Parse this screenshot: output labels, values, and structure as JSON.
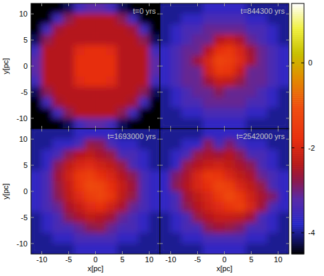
{
  "chart_data": {
    "type": "heatmap",
    "x_label": "x[pc]",
    "y_label": "y[pc]",
    "xlim": [
      -12,
      12
    ],
    "ylim": [
      -12,
      12
    ],
    "xticks": [
      -10,
      -5,
      0,
      5,
      10
    ],
    "yticks": [
      -10,
      -5,
      0,
      5,
      10
    ],
    "x": [
      -11,
      -9,
      -7,
      -5,
      -3,
      -1,
      1,
      3,
      5,
      7,
      9,
      11
    ],
    "y": [
      11,
      9,
      7,
      5,
      3,
      1,
      -1,
      -3,
      -5,
      -7,
      -9,
      -11
    ],
    "color_range": [
      -4.5,
      1.4
    ],
    "color_ticks": [
      -4,
      -2,
      0
    ],
    "panels": [
      {
        "title": "t=0 yrs",
        "cells": [
          [
            -4.5,
            -4.5,
            -4.5,
            -4.2,
            -3.5,
            -3.2,
            -3.2,
            -3.5,
            -4.2,
            -4.5,
            -4.5,
            -4.5
          ],
          [
            -4.5,
            -4.5,
            -3.5,
            -2.8,
            -2.4,
            -2.4,
            -2.4,
            -2.4,
            -2.8,
            -3.5,
            -4.5,
            -4.5
          ],
          [
            -4.5,
            -3.5,
            -2.6,
            -2.4,
            -2.4,
            -2.4,
            -2.4,
            -2.4,
            -2.4,
            -2.6,
            -3.5,
            -4.5
          ],
          [
            -4.2,
            -2.8,
            -2.4,
            -2.4,
            -2.4,
            -2.4,
            -2.4,
            -2.4,
            -2.4,
            -2.4,
            -2.8,
            -4.2
          ],
          [
            -3.5,
            -2.4,
            -2.4,
            -2.4,
            -1.9,
            -1.8,
            -1.8,
            -1.9,
            -2.4,
            -2.4,
            -2.4,
            -3.5
          ],
          [
            -3.2,
            -2.4,
            -2.4,
            -2.4,
            -1.8,
            -1.8,
            -1.8,
            -1.8,
            -2.4,
            -2.4,
            -2.4,
            -3.2
          ],
          [
            -3.2,
            -2.4,
            -2.4,
            -2.4,
            -1.8,
            -1.8,
            -1.8,
            -1.8,
            -2.4,
            -2.4,
            -2.4,
            -3.2
          ],
          [
            -3.5,
            -2.4,
            -2.4,
            -2.4,
            -1.9,
            -1.8,
            -1.8,
            -1.9,
            -2.4,
            -2.4,
            -2.4,
            -3.5
          ],
          [
            -4.2,
            -2.8,
            -2.4,
            -2.4,
            -2.4,
            -2.4,
            -2.4,
            -2.4,
            -2.4,
            -2.4,
            -2.8,
            -4.2
          ],
          [
            -4.5,
            -3.5,
            -2.6,
            -2.4,
            -2.4,
            -2.4,
            -2.4,
            -2.4,
            -2.4,
            -2.6,
            -3.5,
            -4.5
          ],
          [
            -4.5,
            -4.5,
            -3.5,
            -2.8,
            -2.4,
            -2.4,
            -2.4,
            -2.4,
            -2.8,
            -3.5,
            -4.5,
            -4.5
          ],
          [
            -4.5,
            -4.5,
            -4.5,
            -4.2,
            -3.5,
            -3.2,
            -3.2,
            -3.5,
            -4.2,
            -4.5,
            -4.5,
            -4.5
          ]
        ]
      },
      {
        "title": "t=844300 yrs",
        "cells": [
          [
            -4.0,
            -4.0,
            -4.0,
            -4.0,
            -3.7,
            -3.7,
            -3.7,
            -3.7,
            -4.0,
            -4.0,
            -4.0,
            -4.0
          ],
          [
            -4.0,
            -4.0,
            -3.7,
            -3.7,
            -3.4,
            -3.4,
            -3.4,
            -3.4,
            -3.7,
            -3.7,
            -4.0,
            -4.0
          ],
          [
            -4.0,
            -3.7,
            -3.4,
            -3.4,
            -3.1,
            -3.1,
            -3.1,
            -3.1,
            -3.4,
            -3.4,
            -3.7,
            -4.0
          ],
          [
            -4.0,
            -3.7,
            -3.4,
            -3.1,
            -3.1,
            -2.4,
            -2.2,
            -2.5,
            -3.1,
            -3.4,
            -3.7,
            -4.0
          ],
          [
            -3.7,
            -3.4,
            -3.1,
            -3.1,
            -2.4,
            -1.8,
            -1.6,
            -2.0,
            -2.6,
            -3.1,
            -3.4,
            -3.7
          ],
          [
            -3.7,
            -3.4,
            -3.1,
            -2.6,
            -2.0,
            -1.3,
            -1.5,
            -1.9,
            -2.5,
            -3.1,
            -3.4,
            -3.7
          ],
          [
            -3.7,
            -3.4,
            -3.1,
            -3.1,
            -2.1,
            -1.6,
            -1.7,
            -2.2,
            -3.1,
            -3.1,
            -3.4,
            -3.7
          ],
          [
            -3.7,
            -3.4,
            -3.1,
            -3.1,
            -2.6,
            -2.2,
            -2.3,
            -2.7,
            -3.1,
            -3.1,
            -3.4,
            -3.7
          ],
          [
            -4.0,
            -3.7,
            -3.4,
            -3.1,
            -3.1,
            -2.8,
            -3.1,
            -3.1,
            -3.1,
            -3.4,
            -3.7,
            -4.0
          ],
          [
            -4.0,
            -3.7,
            -3.4,
            -3.4,
            -3.1,
            -3.1,
            -3.1,
            -3.1,
            -3.4,
            -3.4,
            -3.7,
            -4.0
          ],
          [
            -4.0,
            -4.0,
            -3.7,
            -3.7,
            -3.4,
            -3.4,
            -3.4,
            -3.4,
            -3.7,
            -3.7,
            -4.0,
            -4.0
          ],
          [
            -4.0,
            -4.0,
            -4.0,
            -4.0,
            -3.7,
            -3.7,
            -3.7,
            -3.7,
            -4.0,
            -4.0,
            -4.0,
            -4.0
          ]
        ]
      },
      {
        "title": "t=1693000 yrs",
        "cells": [
          [
            -4.0,
            -4.0,
            -4.0,
            -4.0,
            -3.7,
            -3.7,
            -3.7,
            -3.7,
            -4.0,
            -4.0,
            -4.0,
            -4.0
          ],
          [
            -4.0,
            -4.0,
            -3.7,
            -3.7,
            -3.4,
            -2.7,
            -2.8,
            -3.4,
            -3.7,
            -3.7,
            -4.0,
            -4.0
          ],
          [
            -4.0,
            -3.7,
            -3.4,
            -2.8,
            -2.4,
            -2.3,
            -2.5,
            -2.7,
            -3.4,
            -3.4,
            -3.7,
            -4.0
          ],
          [
            -4.0,
            -3.7,
            -2.8,
            -2.3,
            -2.0,
            -1.9,
            -2.1,
            -2.3,
            -2.7,
            -3.4,
            -3.7,
            -4.0
          ],
          [
            -3.7,
            -3.4,
            -2.6,
            -2.1,
            -1.6,
            -1.4,
            -1.8,
            -2.0,
            -2.4,
            -2.8,
            -3.4,
            -3.7
          ],
          [
            -3.7,
            -3.4,
            -2.7,
            -2.2,
            -1.7,
            -1.2,
            -1.3,
            -1.8,
            -2.2,
            -2.6,
            -3.4,
            -3.7
          ],
          [
            -3.7,
            -3.4,
            -2.8,
            -2.3,
            -1.9,
            -1.5,
            -1.3,
            -1.7,
            -2.3,
            -2.7,
            -3.4,
            -3.7
          ],
          [
            -3.7,
            -3.4,
            -3.1,
            -2.5,
            -2.2,
            -1.9,
            -1.8,
            -2.1,
            -2.5,
            -3.1,
            -3.4,
            -3.7
          ],
          [
            -4.0,
            -3.7,
            -3.4,
            -2.8,
            -2.5,
            -2.3,
            -2.4,
            -2.6,
            -3.1,
            -3.4,
            -3.7,
            -4.0
          ],
          [
            -4.0,
            -3.7,
            -3.4,
            -3.4,
            -3.1,
            -2.8,
            -2.7,
            -3.1,
            -3.4,
            -3.4,
            -3.7,
            -4.0
          ],
          [
            -4.0,
            -4.0,
            -3.7,
            -3.7,
            -3.4,
            -3.4,
            -3.4,
            -3.4,
            -3.7,
            -3.7,
            -4.0,
            -4.0
          ],
          [
            -4.0,
            -4.0,
            -4.0,
            -4.0,
            -3.7,
            -3.7,
            -3.7,
            -3.7,
            -4.0,
            -4.0,
            -4.0,
            -4.0
          ]
        ]
      },
      {
        "title": "t=2542000 yrs",
        "cells": [
          [
            -4.0,
            -4.0,
            -4.0,
            -4.0,
            -3.7,
            -3.7,
            -3.7,
            -3.7,
            -4.0,
            -4.0,
            -4.0,
            -4.0
          ],
          [
            -4.0,
            -4.0,
            -3.7,
            -3.7,
            -2.8,
            -3.4,
            -2.9,
            -3.4,
            -3.7,
            -3.7,
            -4.0,
            -4.0
          ],
          [
            -4.0,
            -3.7,
            -3.4,
            -2.7,
            -2.5,
            -2.6,
            -2.4,
            -2.8,
            -3.4,
            -3.4,
            -3.7,
            -4.0
          ],
          [
            -4.0,
            -3.7,
            -2.7,
            -2.4,
            -2.2,
            -2.1,
            -2.3,
            -2.5,
            -2.8,
            -3.4,
            -3.7,
            -4.0
          ],
          [
            -3.7,
            -2.9,
            -2.5,
            -2.0,
            -1.6,
            -1.7,
            -2.0,
            -2.3,
            -2.5,
            -3.1,
            -3.4,
            -3.7
          ],
          [
            -3.7,
            -2.8,
            -2.4,
            -2.0,
            -1.8,
            -1.3,
            -1.5,
            -2.0,
            -2.3,
            -2.7,
            -3.4,
            -3.7
          ],
          [
            -3.7,
            -3.4,
            -2.6,
            -2.3,
            -2.0,
            -1.6,
            -1.2,
            -1.6,
            -2.1,
            -2.5,
            -2.9,
            -3.7
          ],
          [
            -3.7,
            -3.4,
            -2.8,
            -2.4,
            -2.1,
            -1.9,
            -1.7,
            -1.5,
            -2.0,
            -2.6,
            -3.4,
            -3.7
          ],
          [
            -4.0,
            -3.7,
            -3.4,
            -2.7,
            -2.4,
            -2.2,
            -2.2,
            -2.3,
            -2.6,
            -3.4,
            -3.7,
            -4.0
          ],
          [
            -4.0,
            -3.7,
            -3.4,
            -3.4,
            -2.8,
            -2.6,
            -2.7,
            -2.9,
            -3.4,
            -3.4,
            -3.7,
            -4.0
          ],
          [
            -4.0,
            -4.0,
            -3.7,
            -3.7,
            -3.4,
            -3.4,
            -3.4,
            -3.4,
            -3.7,
            -3.7,
            -4.0,
            -4.0
          ],
          [
            -4.0,
            -4.0,
            -4.0,
            -4.0,
            -3.7,
            -3.7,
            -3.7,
            -3.7,
            -4.0,
            -4.0,
            -4.0,
            -4.0
          ]
        ]
      }
    ]
  }
}
